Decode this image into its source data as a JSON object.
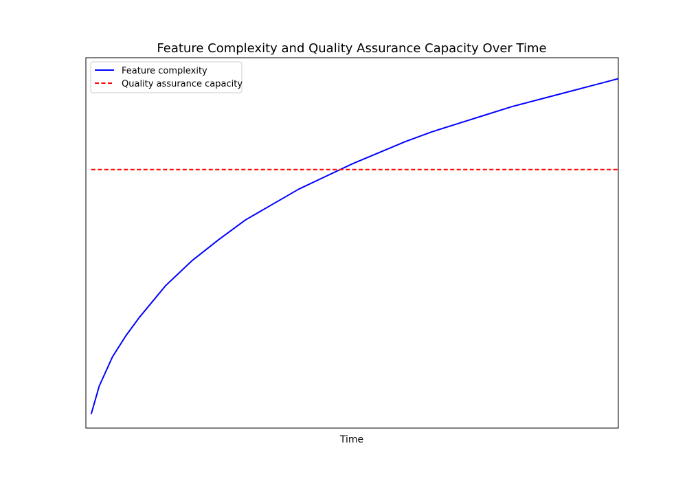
{
  "chart_data": {
    "type": "line",
    "title": "Feature Complexity and Quality Assurance Capacity Over Time",
    "xlabel": "Time",
    "ylabel": "",
    "xlim": [
      0,
      10
    ],
    "ylim": [
      -0.1,
      2.55
    ],
    "x": [
      0.1,
      0.25,
      0.5,
      0.75,
      1.0,
      1.5,
      2.0,
      2.5,
      3.0,
      3.5,
      4.0,
      4.5,
      5.0,
      5.5,
      6.0,
      6.5,
      7.0,
      7.5,
      8.0,
      8.5,
      9.0,
      9.5,
      10.0
    ],
    "series": [
      {
        "name": "Feature complexity",
        "color": "#0000ff",
        "style": "solid",
        "values": [
          0.0,
          0.2,
          0.41,
          0.56,
          0.69,
          0.92,
          1.1,
          1.25,
          1.39,
          1.5,
          1.61,
          1.7,
          1.79,
          1.87,
          1.95,
          2.02,
          2.08,
          2.14,
          2.2,
          2.25,
          2.3,
          2.35,
          2.4
        ]
      },
      {
        "name": "Quality assurance capacity",
        "color": "#ff0000",
        "style": "dashed",
        "values": [
          1.75,
          1.75,
          1.75,
          1.75,
          1.75,
          1.75,
          1.75,
          1.75,
          1.75,
          1.75,
          1.75,
          1.75,
          1.75,
          1.75,
          1.75,
          1.75,
          1.75,
          1.75,
          1.75,
          1.75,
          1.75,
          1.75,
          1.75
        ]
      }
    ],
    "grid": false,
    "x_ticks_visible": false,
    "y_ticks_visible": false,
    "legend_position": "upper left"
  }
}
